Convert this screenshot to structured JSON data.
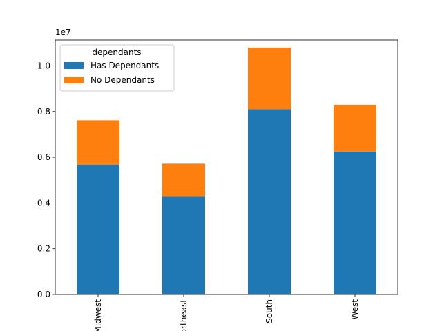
{
  "chart_data": {
    "type": "bar",
    "stacked": true,
    "categories": [
      "Midwest",
      "Northeast",
      "South",
      "West"
    ],
    "series": [
      {
        "name": "Has Dependants",
        "values": [
          5680000,
          4300000,
          8100000,
          6250000
        ],
        "color": "#1f77b4"
      },
      {
        "name": "No Dependants",
        "values": [
          1940000,
          1420000,
          2700000,
          2050000
        ],
        "color": "#ff7f0e"
      }
    ],
    "title": "",
    "xlabel": "",
    "ylabel": "",
    "ylim": [
      0,
      11130000
    ],
    "y_ticks": [
      0,
      2000000,
      4000000,
      6000000,
      8000000,
      10000000
    ],
    "y_tick_labels": [
      "0.0",
      "0.2",
      "0.4",
      "0.6",
      "0.8",
      "1.0"
    ],
    "y_offset_label": "1e7",
    "x_tick_rotation": 90,
    "grid": false,
    "legend": {
      "title": "dependants",
      "placement": "top-left"
    }
  }
}
